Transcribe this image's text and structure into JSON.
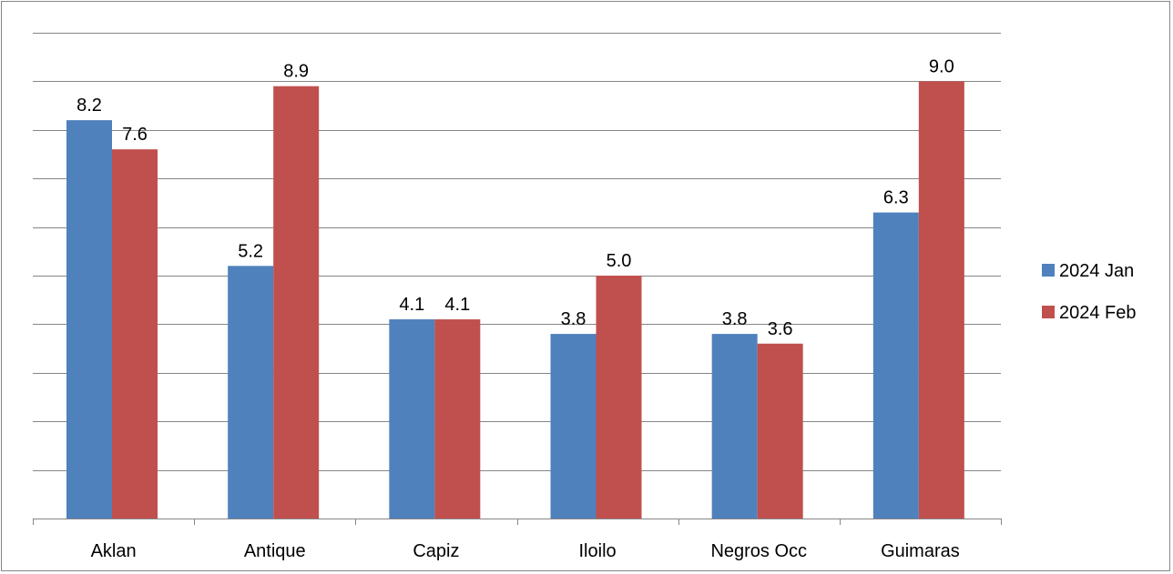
{
  "chart_data": {
    "type": "bar",
    "title": "",
    "xlabel": "",
    "ylabel": "",
    "categories": [
      "Aklan",
      "Antique",
      "Capiz",
      "Iloilo",
      "Negros Occ",
      "Guimaras"
    ],
    "series": [
      {
        "name": "2024 Jan",
        "color": "#4F81BD",
        "values": [
          8.2,
          5.2,
          4.1,
          3.8,
          3.8,
          6.3
        ],
        "labels": [
          "8.2",
          "5.2",
          "4.1",
          "3.8",
          "3.8",
          "6.3"
        ]
      },
      {
        "name": "2024 Feb",
        "color": "#C0504D",
        "values": [
          7.6,
          8.9,
          4.1,
          5.0,
          3.6,
          9.0
        ],
        "labels": [
          "7.6",
          "8.9",
          "4.1",
          "5.0",
          "3.6",
          "9.0"
        ]
      }
    ],
    "ylim": [
      0,
      10
    ],
    "ytick_step": 1,
    "y_tick_labels_shown": false,
    "grid": true,
    "legend_position": "right"
  },
  "colors": {
    "gridline": "#868686",
    "axis": "#868686"
  }
}
